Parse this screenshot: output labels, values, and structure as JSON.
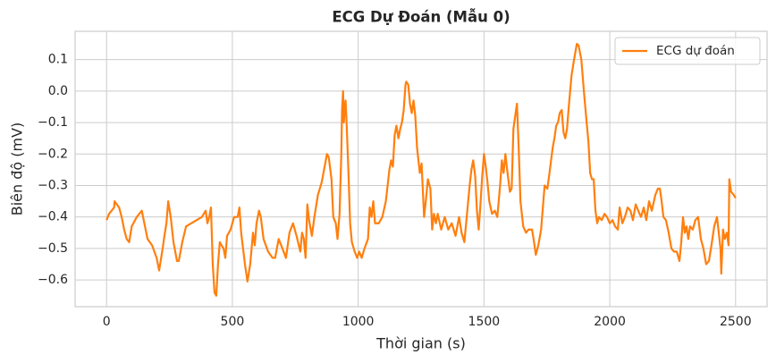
{
  "chart_data": {
    "type": "line",
    "title": "ECG Dự Đoán (Mẫu 0)",
    "x_label": "Thời gian (s)",
    "y_label": "Biên độ (mV)",
    "x": [
      0,
      10,
      20,
      30,
      32,
      50,
      60,
      70,
      80,
      90,
      100,
      120,
      140,
      163,
      181,
      199,
      209,
      223,
      230,
      238,
      245,
      255,
      266,
      280,
      287,
      301,
      316,
      337,
      358,
      379,
      394,
      401,
      408,
      415,
      422,
      429,
      436,
      443,
      450,
      457,
      465,
      472,
      479,
      493,
      507,
      521,
      528,
      535,
      550,
      560,
      571,
      582,
      589,
      596,
      606,
      613,
      624,
      642,
      660,
      670,
      684,
      699,
      713,
      727,
      741,
      755,
      770,
      777,
      784,
      791,
      798,
      805,
      816,
      826,
      840,
      855,
      869,
      876,
      883,
      894,
      901,
      911,
      918,
      926,
      933,
      936,
      940,
      943,
      947,
      950,
      954,
      961,
      968,
      975,
      986,
      996,
      1004,
      1014,
      1025,
      1039,
      1046,
      1053,
      1060,
      1067,
      1082,
      1096,
      1110,
      1117,
      1124,
      1131,
      1138,
      1145,
      1152,
      1160,
      1167,
      1174,
      1181,
      1188,
      1191,
      1199,
      1206,
      1213,
      1220,
      1227,
      1234,
      1245,
      1252,
      1262,
      1270,
      1277,
      1287,
      1294,
      1301,
      1309,
      1316,
      1330,
      1344,
      1358,
      1372,
      1387,
      1401,
      1411,
      1422,
      1436,
      1443,
      1450,
      1457,
      1465,
      1472,
      1479,
      1486,
      1493,
      1500,
      1507,
      1514,
      1521,
      1532,
      1543,
      1553,
      1564,
      1571,
      1578,
      1585,
      1592,
      1603,
      1610,
      1617,
      1624,
      1631,
      1638,
      1645,
      1656,
      1667,
      1677,
      1691,
      1699,
      1706,
      1716,
      1727,
      1734,
      1741,
      1752,
      1762,
      1773,
      1780,
      1787,
      1794,
      1801,
      1809,
      1816,
      1823,
      1830,
      1837,
      1848,
      1858,
      1869,
      1876,
      1887,
      1897,
      1908,
      1915,
      1922,
      1929,
      1936,
      1943,
      1950,
      1957,
      1968,
      1979,
      1989,
      2000,
      2011,
      2021,
      2032,
      2039,
      2050,
      2060,
      2071,
      2082,
      2092,
      2103,
      2113,
      2124,
      2135,
      2145,
      2156,
      2167,
      2181,
      2191,
      2199,
      2206,
      2213,
      2223,
      2234,
      2245,
      2255,
      2266,
      2277,
      2284,
      2291,
      2298,
      2305,
      2312,
      2319,
      2330,
      2340,
      2351,
      2362,
      2372,
      2383,
      2394,
      2404,
      2415,
      2426,
      2433,
      2440,
      2443,
      2450,
      2457,
      2465,
      2472,
      2475,
      2482,
      2493,
      2500
    ],
    "series": [
      {
        "name": "ECG dự đoán",
        "color": "#ff7f0e",
        "values": [
          -0.41,
          -0.39,
          -0.38,
          -0.37,
          -0.35,
          -0.37,
          -0.4,
          -0.44,
          -0.47,
          -0.48,
          -0.43,
          -0.4,
          -0.38,
          -0.47,
          -0.49,
          -0.53,
          -0.57,
          -0.5,
          -0.46,
          -0.42,
          -0.35,
          -0.4,
          -0.48,
          -0.54,
          -0.54,
          -0.48,
          -0.43,
          -0.42,
          -0.41,
          -0.4,
          -0.38,
          -0.42,
          -0.4,
          -0.37,
          -0.55,
          -0.64,
          -0.65,
          -0.55,
          -0.48,
          -0.49,
          -0.5,
          -0.53,
          -0.46,
          -0.44,
          -0.4,
          -0.4,
          -0.37,
          -0.45,
          -0.55,
          -0.605,
          -0.55,
          -0.45,
          -0.49,
          -0.42,
          -0.38,
          -0.4,
          -0.47,
          -0.51,
          -0.53,
          -0.53,
          -0.47,
          -0.5,
          -0.53,
          -0.45,
          -0.42,
          -0.46,
          -0.51,
          -0.45,
          -0.47,
          -0.53,
          -0.36,
          -0.41,
          -0.46,
          -0.4,
          -0.33,
          -0.29,
          -0.23,
          -0.2,
          -0.21,
          -0.28,
          -0.4,
          -0.42,
          -0.47,
          -0.39,
          -0.2,
          -0.06,
          0.0,
          -0.1,
          -0.05,
          -0.03,
          -0.1,
          -0.25,
          -0.42,
          -0.48,
          -0.51,
          -0.53,
          -0.51,
          -0.53,
          -0.5,
          -0.47,
          -0.37,
          -0.4,
          -0.35,
          -0.42,
          -0.42,
          -0.4,
          -0.35,
          -0.3,
          -0.25,
          -0.22,
          -0.24,
          -0.14,
          -0.11,
          -0.15,
          -0.12,
          -0.1,
          -0.06,
          0.02,
          0.03,
          0.02,
          -0.04,
          -0.07,
          -0.03,
          -0.08,
          -0.18,
          -0.26,
          -0.23,
          -0.4,
          -0.34,
          -0.28,
          -0.31,
          -0.44,
          -0.39,
          -0.42,
          -0.39,
          -0.44,
          -0.4,
          -0.44,
          -0.42,
          -0.46,
          -0.4,
          -0.45,
          -0.48,
          -0.36,
          -0.3,
          -0.25,
          -0.22,
          -0.27,
          -0.38,
          -0.44,
          -0.36,
          -0.27,
          -0.2,
          -0.24,
          -0.29,
          -0.35,
          -0.39,
          -0.38,
          -0.4,
          -0.3,
          -0.22,
          -0.26,
          -0.2,
          -0.25,
          -0.32,
          -0.31,
          -0.12,
          -0.08,
          -0.04,
          -0.18,
          -0.35,
          -0.43,
          -0.45,
          -0.44,
          -0.44,
          -0.48,
          -0.52,
          -0.49,
          -0.44,
          -0.37,
          -0.3,
          -0.31,
          -0.25,
          -0.18,
          -0.15,
          -0.11,
          -0.1,
          -0.07,
          -0.06,
          -0.13,
          -0.15,
          -0.12,
          -0.05,
          0.05,
          0.1,
          0.15,
          0.145,
          0.1,
          0.0,
          -0.1,
          -0.16,
          -0.26,
          -0.28,
          -0.28,
          -0.38,
          -0.42,
          -0.4,
          -0.41,
          -0.39,
          -0.4,
          -0.42,
          -0.41,
          -0.43,
          -0.44,
          -0.37,
          -0.42,
          -0.4,
          -0.37,
          -0.38,
          -0.41,
          -0.36,
          -0.38,
          -0.4,
          -0.37,
          -0.41,
          -0.35,
          -0.38,
          -0.33,
          -0.31,
          -0.31,
          -0.35,
          -0.4,
          -0.41,
          -0.45,
          -0.5,
          -0.51,
          -0.51,
          -0.54,
          -0.48,
          -0.4,
          -0.45,
          -0.43,
          -0.47,
          -0.43,
          -0.44,
          -0.41,
          -0.4,
          -0.47,
          -0.5,
          -0.55,
          -0.54,
          -0.49,
          -0.43,
          -0.4,
          -0.45,
          -0.5,
          -0.58,
          -0.44,
          -0.47,
          -0.45,
          -0.49,
          -0.28,
          -0.32,
          -0.33,
          -0.34
        ]
      }
    ],
    "xlim": [
      -125,
      2625
    ],
    "ylim": [
      -0.685,
      0.19
    ],
    "xticks": [
      0,
      500,
      1000,
      1500,
      2000,
      2500
    ],
    "yticks": [
      {
        "value": -0.6,
        "label": "−0.6"
      },
      {
        "value": -0.5,
        "label": "−0.5"
      },
      {
        "value": -0.4,
        "label": "−0.4"
      },
      {
        "value": -0.3,
        "label": "−0.3"
      },
      {
        "value": -0.2,
        "label": "−0.2"
      },
      {
        "value": -0.1,
        "label": "−0.1"
      },
      {
        "value": 0,
        "label": "0.0"
      },
      0.1
    ],
    "grid": true,
    "legend": "upper right"
  }
}
